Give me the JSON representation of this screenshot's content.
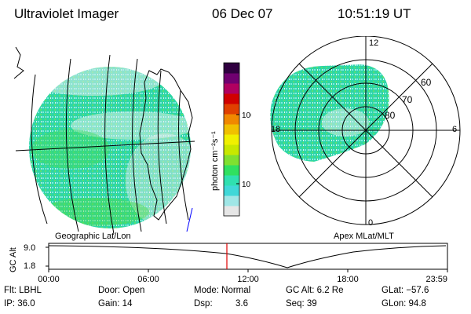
{
  "header": {
    "title": "Ultraviolet Imager",
    "date": "06 Dec 07",
    "time": "10:51:19 UT"
  },
  "geo_panel": {
    "label": "Geographic Lat/Lon"
  },
  "color_bar": {
    "unit_label": "photon cm⁻²s⁻¹",
    "ticks": [
      "100",
      "10"
    ],
    "scale": "log",
    "colors": [
      "#e6e6e6",
      "#a0e6e6",
      "#40d8d8",
      "#30e0b0",
      "#30e060",
      "#80e030",
      "#c8e800",
      "#f0f000",
      "#f0c000",
      "#f08800",
      "#e04000",
      "#d00000",
      "#b00060",
      "#700070",
      "#300040"
    ]
  },
  "polar_panel": {
    "label": "Apex MLat/MLT",
    "lat_labels": [
      "60",
      "70",
      "80"
    ],
    "mlt_labels": [
      "12",
      "18",
      "6",
      "0"
    ]
  },
  "altitude_plot": {
    "axis_label": "GC Alt",
    "y_ticks": [
      "9.0",
      "1.8"
    ],
    "x_ticks": [
      "00:00",
      "06:00",
      "12:00",
      "18:00",
      "23:59"
    ],
    "marker_color": "#e00000"
  },
  "info": {
    "flt": "Flt: LBHL",
    "door": "Door: Open",
    "mode": "Mode: Normal",
    "gc_alt": "GC Alt: 6.2 Re",
    "glat": "GLat: −57.6",
    "ip": "IP: 36.0",
    "gain": "Gain: 14",
    "dsp_label": "Dsp:",
    "dsp_value": "3.6",
    "seq": "Seq: 39",
    "glon": "GLon:  94.8"
  }
}
